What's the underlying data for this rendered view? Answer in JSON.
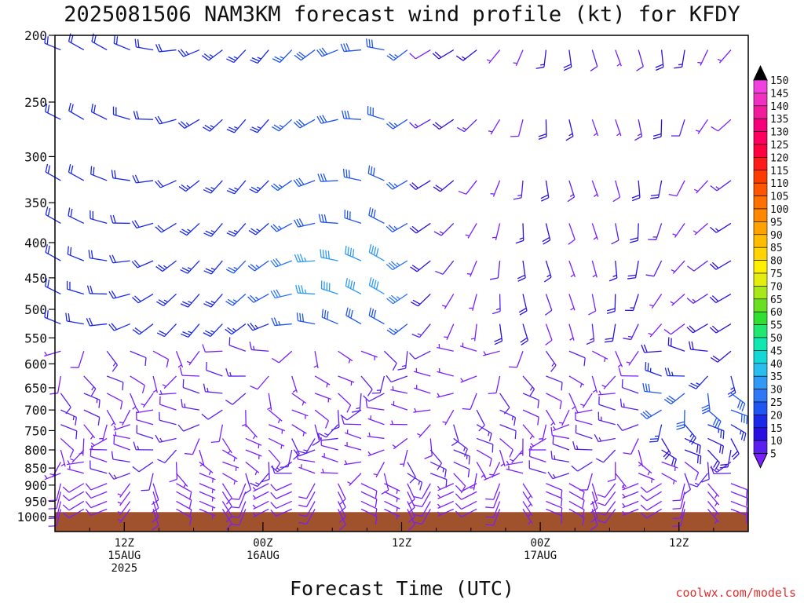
{
  "title": "2025081506 NAM3KM forecast wind profile (kt) for KFDY",
  "credit": "coolwx.com/models",
  "colors": {
    "ground": "#a0522d",
    "frame": "#000000",
    "credit": "#e03030"
  },
  "chart_data": {
    "type": "wind_barb_profile",
    "title": "2025081506 NAM3KM forecast wind profile (kt) for KFDY",
    "xlabel": "Forecast Time (UTC)",
    "ylabel": "",
    "y_log_pressure": true,
    "ylim": [
      1000,
      200
    ],
    "y_ticks": [
      200,
      250,
      300,
      350,
      400,
      450,
      500,
      550,
      600,
      650,
      700,
      750,
      800,
      850,
      900,
      950,
      1000
    ],
    "x_forecast_hours": [
      0,
      60
    ],
    "x_ticks": [
      {
        "hour": 6,
        "line1": "12Z",
        "line2": "15AUG",
        "line3": "2025"
      },
      {
        "hour": 18,
        "line1": "00Z",
        "line2": "16AUG",
        "line3": ""
      },
      {
        "hour": 30,
        "line1": "12Z",
        "line2": "",
        "line3": ""
      },
      {
        "hour": 42,
        "line1": "00Z",
        "line2": "17AUG",
        "line3": ""
      },
      {
        "hour": 54,
        "line1": "12Z",
        "line2": "",
        "line3": ""
      }
    ],
    "ground_pressure": 985,
    "levels": [
      210,
      265,
      325,
      375,
      425,
      475,
      525,
      575,
      625,
      662,
      700,
      735,
      770,
      800,
      833,
      865,
      895,
      920,
      950,
      975
    ],
    "times": [
      0.5,
      2.5,
      4.5,
      6.5,
      8.5,
      10.5,
      12.5,
      14.5,
      16.5,
      18.5,
      20.5,
      22.5,
      24.5,
      26.5,
      28.5,
      30.5,
      32.5,
      34.5,
      36.5,
      38.5,
      40.5,
      42.5,
      44.5,
      46.5,
      48.5,
      50.5,
      52.5,
      54.5,
      56.5,
      58.5
    ],
    "speed_description_kt": "about 15-30 kt aloft before 24h, strongest (40-50 kt) near 400-550 hPa around 24-30h, weak (5-15 kt) low-level flow, 20-35 kt on the right side below 600 hPa",
    "colorbar": {
      "units": "kt",
      "levels": [
        5,
        10,
        15,
        20,
        25,
        30,
        35,
        40,
        45,
        50,
        55,
        60,
        65,
        70,
        75,
        80,
        85,
        90,
        95,
        100,
        105,
        110,
        115,
        120,
        125,
        130,
        135,
        140,
        145,
        150
      ],
      "colors": [
        "#7a1fff",
        "#5a1ff0",
        "#2a10e0",
        "#1a28e8",
        "#1f55f0",
        "#2f78f5",
        "#2e9af5",
        "#29bef0",
        "#14d8d8",
        "#10e8b0",
        "#20e870",
        "#30e030",
        "#66e020",
        "#a8e818",
        "#e4ec10",
        "#fff000",
        "#ffd400",
        "#ffbc00",
        "#ffa200",
        "#ff8800",
        "#ff7000",
        "#ff5500",
        "#ff3a00",
        "#ff1a1a",
        "#ff0040",
        "#ff0060",
        "#f5007a",
        "#f01c9a",
        "#f030c0",
        "#f040e0"
      ]
    }
  }
}
